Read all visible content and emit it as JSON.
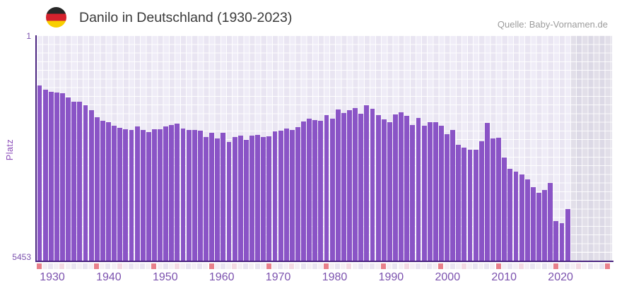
{
  "header": {
    "title": "Danilo in Deutschland (1930-2023)",
    "source": "Quelle: Baby-Vornamen.de",
    "flag_icon": "germany-flag-roundel",
    "flag_stripe_colors": [
      "#272727",
      "#d5222d",
      "#f8cf00"
    ]
  },
  "chart_data": {
    "type": "bar",
    "title": "Danilo in Deutschland (1930-2023)",
    "xlabel": "",
    "ylabel": "Platz",
    "y_axis": {
      "top_tick": "1",
      "bottom_tick": "5453",
      "min": 1,
      "max": 5453,
      "inverted": true,
      "grid": true
    },
    "x_tick_labels": [
      "1930",
      "1940",
      "1950",
      "1960",
      "1970",
      "1980",
      "1990",
      "2000",
      "2010",
      "2020"
    ],
    "start_year": 1930,
    "last_data_year": 2022,
    "axis_end_year": 2029,
    "legend": "none",
    "values": [
      1220,
      1310,
      1360,
      1390,
      1410,
      1500,
      1600,
      1600,
      1700,
      1820,
      1980,
      2070,
      2100,
      2190,
      2240,
      2270,
      2290,
      2200,
      2290,
      2340,
      2270,
      2270,
      2200,
      2170,
      2130,
      2250,
      2290,
      2290,
      2310,
      2460,
      2360,
      2490,
      2360,
      2580,
      2460,
      2430,
      2530,
      2430,
      2410,
      2460,
      2440,
      2320,
      2310,
      2250,
      2290,
      2220,
      2080,
      2010,
      2050,
      2070,
      1930,
      2010,
      1790,
      1880,
      1820,
      1760,
      1890,
      1700,
      1770,
      1930,
      2030,
      2100,
      1910,
      1860,
      1950,
      2170,
      2000,
      2190,
      2100,
      2100,
      2190,
      2390,
      2290,
      2650,
      2720,
      2770,
      2770,
      2560,
      2120,
      2490,
      2480,
      2960,
      3230,
      3300,
      3360,
      3480,
      3670,
      3820,
      3750,
      3580,
      4490,
      4540,
      4200
    ],
    "colors": {
      "bar": "#8a54c6",
      "axis_line": "#4a2480",
      "axis_label": "#7b51ae",
      "plot_background": "#efecf7",
      "plot_background_alt": "#e9e5f2",
      "no_data_background": "#e2dfe9",
      "gridline": "#ffffff"
    }
  },
  "timeline_strip": {
    "decade_marker_color": "#e8808b",
    "mid_decade_color": "#f3d9e3",
    "cell_color_even": "#e9e4f1",
    "cell_color_odd": "#f4eff5"
  }
}
